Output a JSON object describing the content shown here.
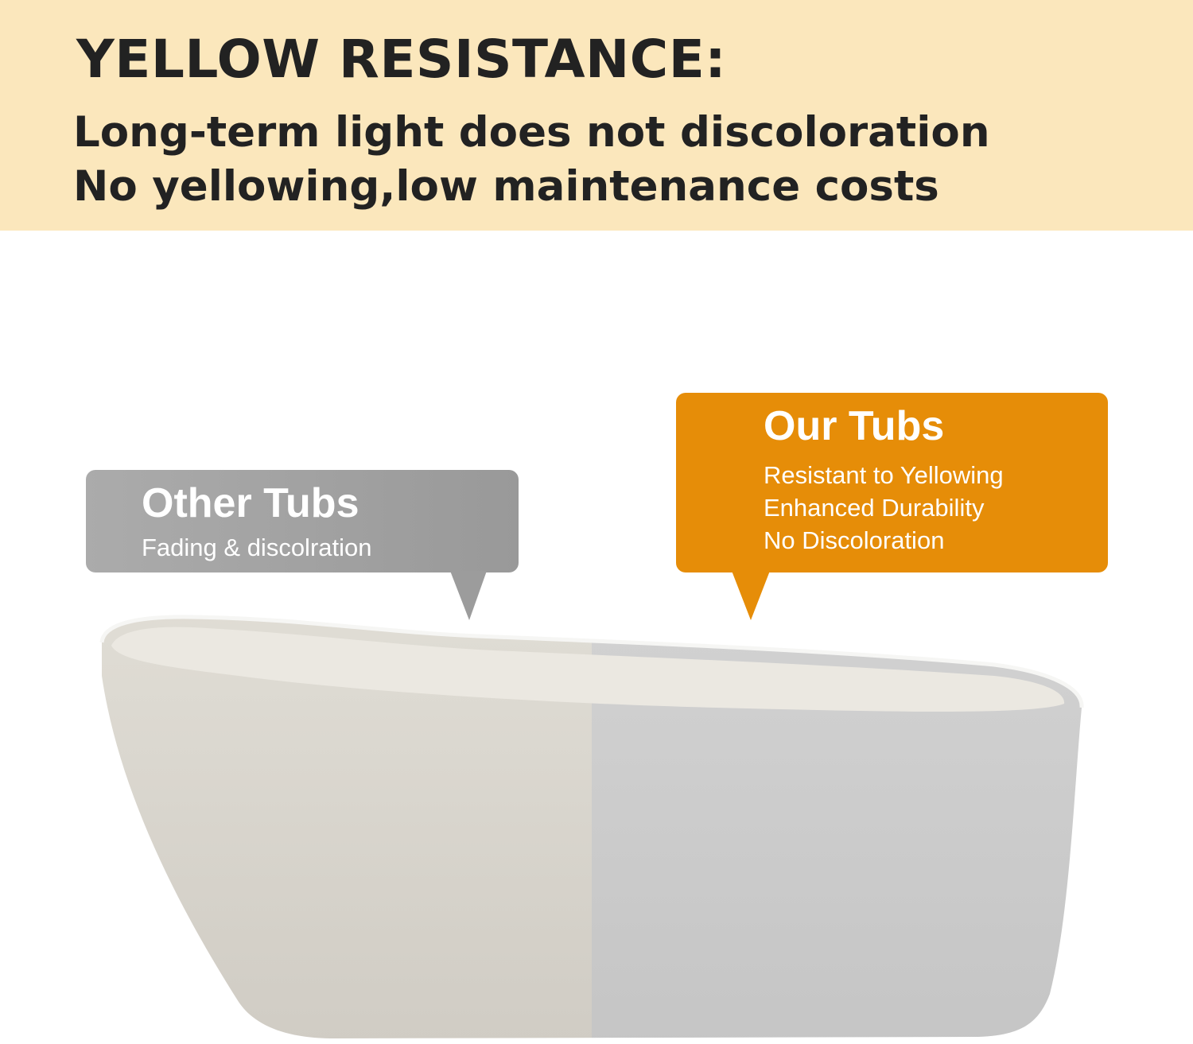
{
  "header": {
    "title": "YELLOW RESISTANCE:",
    "lines": [
      "Long-term light does not discoloration",
      "No yellowing,low maintenance costs"
    ]
  },
  "other_tubs": {
    "heading": "Other Tubs",
    "caption": "Fading & discolration"
  },
  "our_tubs": {
    "heading": "Our Tubs",
    "features": [
      "Resistant to Yellowing",
      "Enhanced Durability",
      "No Discoloration"
    ]
  },
  "colors": {
    "banner": "#fbe7bc",
    "accent": "#e68d08",
    "other_bubble": "#a3a3a3",
    "yellowed_tub": "#d6d2ca",
    "white_tub": "#cbcbcb"
  }
}
